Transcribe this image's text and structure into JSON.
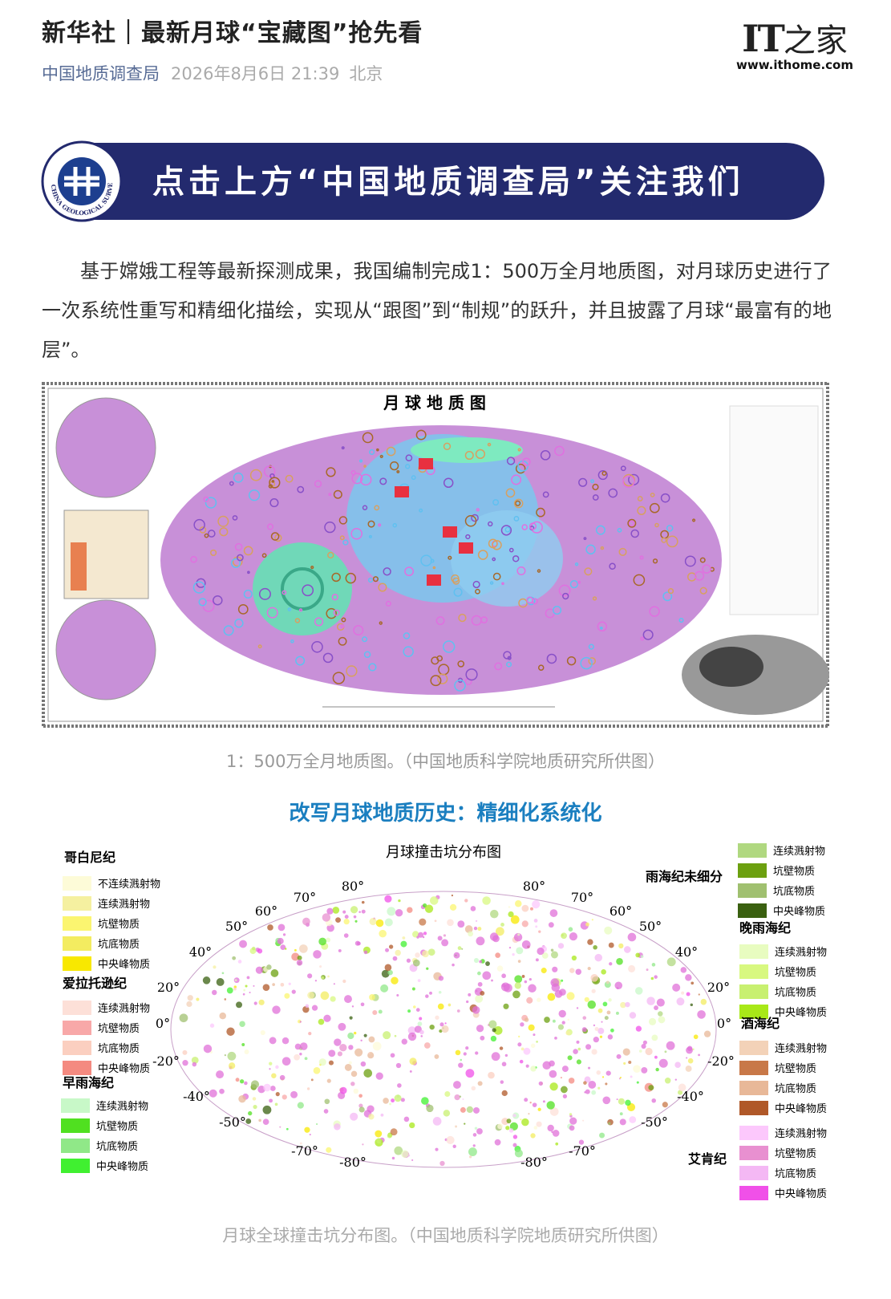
{
  "header": {
    "title": "新华社｜最新月球“宝藏图”抢先看",
    "source": "中国地质调查局",
    "date": "2026年8月6日 21:39",
    "location": "北京"
  },
  "watermark": {
    "logo_it": "IT",
    "logo_cn": "之家",
    "url": "www.ithome.com"
  },
  "banner": {
    "text": "点击上方“中国地质调查局”关注我们",
    "logo_text": "CHINA GEOLOGICAL SURVEY"
  },
  "paragraph": "基于嫦娥工程等最新探测成果，我国编制完成1：500万全月地质图，对月球历史进行了一次系统性重写和精细化描绘，实现从“跟图”到“制规”的跃升，并且披露了月球“最富有的地层”。",
  "figure1": {
    "title": "月 球 地 质 图",
    "caption": "1：500万全月地质图。（中国地质科学院地质研究所供图）"
  },
  "section_heading": "改写月球地质历史：精细化系统化",
  "figure2": {
    "title": "月球撞击坑分布图",
    "lat_labels": [
      "80°",
      "70°",
      "60°",
      "50°",
      "40°",
      "20°",
      "0°",
      "-20°",
      "-40°",
      "-50°",
      "-70°",
      "-80°"
    ],
    "legend_groups": [
      {
        "name": "哥白尼纪",
        "items": [
          {
            "label": "不连续溅射物",
            "color": "#fdfbd8"
          },
          {
            "label": "连续溅射物",
            "color": "#f5f0a0"
          },
          {
            "label": "坑壁物质",
            "color": "#fbf570"
          },
          {
            "label": "坑底物质",
            "color": "#f3ec60"
          },
          {
            "label": "中央峰物质",
            "color": "#f8e800"
          }
        ]
      },
      {
        "name": "爱拉托逊纪",
        "items": [
          {
            "label": "连续溅射物",
            "color": "#fde0d8"
          },
          {
            "label": "坑壁物质",
            "color": "#f8a8a8"
          },
          {
            "label": "坑底物质",
            "color": "#fbcfc0"
          },
          {
            "label": "中央峰物质",
            "color": "#f48a80"
          }
        ]
      },
      {
        "name": "早雨海纪",
        "items": [
          {
            "label": "连续溅射物",
            "color": "#c8f8c8"
          },
          {
            "label": "坑壁物质",
            "color": "#50e020"
          },
          {
            "label": "坑底物质",
            "color": "#90e888"
          },
          {
            "label": "中央峰物质",
            "color": "#40f030"
          }
        ]
      },
      {
        "name": "雨海纪未细分",
        "items": [
          {
            "label": "连续溅射物",
            "color": "#b0d880"
          },
          {
            "label": "坑壁物质",
            "color": "#6ca010"
          },
          {
            "label": "坑底物质",
            "color": "#a0c070"
          },
          {
            "label": "中央峰物质",
            "color": "#3a6010"
          }
        ]
      },
      {
        "name": "晚雨海纪",
        "items": [
          {
            "label": "连续溅射物",
            "color": "#e8fcc0"
          },
          {
            "label": "坑壁物质",
            "color": "#d8f880"
          },
          {
            "label": "坑底物质",
            "color": "#c8f070"
          },
          {
            "label": "中央峰物质",
            "color": "#a8e818"
          }
        ]
      },
      {
        "name": "酒海纪",
        "items": [
          {
            "label": "连续溅射物",
            "color": "#f3d2b8"
          },
          {
            "label": "坑壁物质",
            "color": "#c87848"
          },
          {
            "label": "坑底物质",
            "color": "#e8b898"
          },
          {
            "label": "中央峰物质",
            "color": "#b05828"
          }
        ]
      },
      {
        "name": "艾肯纪",
        "items": [
          {
            "label": "连续溅射物",
            "color": "#fcc8fc"
          },
          {
            "label": "坑壁物质",
            "color": "#e890d0"
          },
          {
            "label": "坑底物质",
            "color": "#f4b8f4"
          },
          {
            "label": "中央峰物质",
            "color": "#f050e8"
          }
        ]
      }
    ],
    "caption": "月球全球撞击坑分布图。（中国地质科学院地质研究所供图）"
  }
}
